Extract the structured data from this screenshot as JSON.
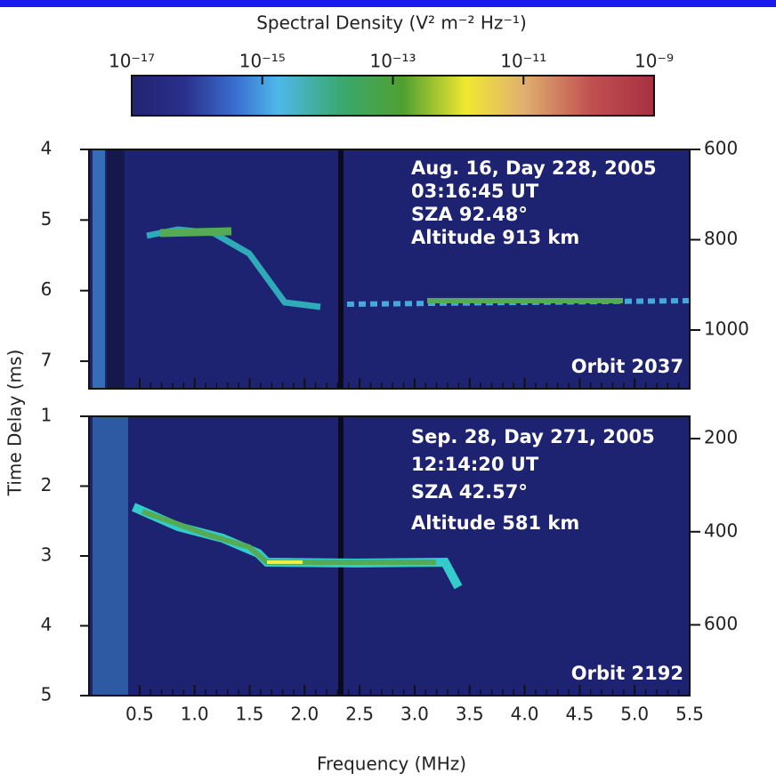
{
  "colorbar": {
    "title": "Spectral Density (V² m⁻² Hz⁻¹)",
    "lim": [
      -17,
      -9
    ],
    "ticks": [
      {
        "value": -17,
        "label": "10⁻¹⁷"
      },
      {
        "value": -15,
        "label": "10⁻¹⁵"
      },
      {
        "value": -13,
        "label": "10⁻¹³"
      },
      {
        "value": -11,
        "label": "10⁻¹¹"
      },
      {
        "value": -9,
        "label": "10⁻⁹"
      }
    ]
  },
  "chart_data": [
    {
      "type": "heatmap",
      "xlim": [
        0.04,
        5.5
      ],
      "xticks": [
        0.5,
        1,
        1.5,
        2,
        2.5,
        3,
        3.5,
        4,
        4.5,
        5,
        5.5
      ],
      "ylim": [
        4,
        7.39
      ],
      "yticks": [
        4,
        5,
        6,
        7
      ],
      "y2lim": [
        600,
        1130
      ],
      "y2ticks": [
        600,
        800,
        1000
      ],
      "annotations": [
        "Aug. 16, Day 228, 2005",
        "03:16:45 UT",
        "SZA 92.48°",
        "Altitude 913 km"
      ],
      "orbit": "Orbit 2037"
    },
    {
      "type": "heatmap",
      "xlabel": "Frequency (MHz)",
      "xlim": [
        0.04,
        5.5
      ],
      "xticks": [
        0.5,
        {
          "value": 1,
          "label": "1.0"
        },
        1.5,
        {
          "value": 2,
          "label": "2.0"
        },
        2.5,
        {
          "value": 3,
          "label": "3.0"
        },
        3.5,
        {
          "value": 4,
          "label": "4.0"
        },
        4.5,
        {
          "value": 5,
          "label": "5.0"
        },
        5.5
      ],
      "ylim": [
        1,
        5
      ],
      "yticks": [
        1,
        2,
        3,
        4,
        5
      ],
      "y2lim": [
        152,
        752
      ],
      "y2ticks": [
        200,
        400,
        600
      ],
      "annotations": [
        "Sep. 28, Day 271, 2005",
        "12:14:20 UT",
        "SZA 42.57°",
        "Altitude 581 km"
      ],
      "orbit": "Orbit 2192"
    }
  ],
  "ylabel": "Time Delay (ms)"
}
